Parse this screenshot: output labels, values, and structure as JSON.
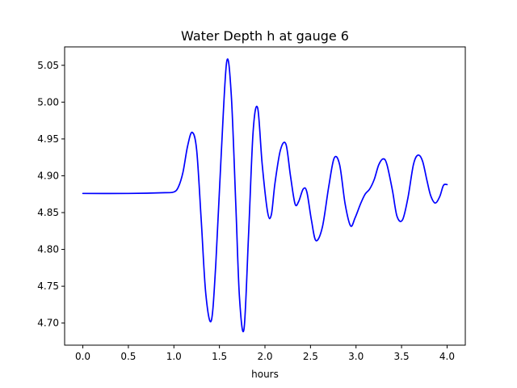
{
  "chart_data": {
    "type": "line",
    "title": "Water Depth h at gauge 6",
    "xlabel": "hours",
    "ylabel": "",
    "xlim": [
      -0.2,
      4.2
    ],
    "ylim": [
      4.67,
      5.075
    ],
    "xticks": [
      0.0,
      0.5,
      1.0,
      1.5,
      2.0,
      2.5,
      3.0,
      3.5,
      4.0
    ],
    "xtick_labels": [
      "0.0",
      "0.5",
      "1.0",
      "1.5",
      "2.0",
      "2.5",
      "3.0",
      "3.5",
      "4.0"
    ],
    "yticks": [
      4.7,
      4.75,
      4.8,
      4.85,
      4.9,
      4.95,
      5.0,
      5.05
    ],
    "ytick_labels": [
      "4.70",
      "4.75",
      "4.80",
      "4.85",
      "4.90",
      "4.95",
      "5.00",
      "5.05"
    ],
    "grid": false,
    "series": [
      {
        "color": "#0000ff",
        "x": [
          0.0,
          0.5,
          0.9,
          1.0,
          1.05,
          1.1,
          1.15,
          1.2,
          1.25,
          1.3,
          1.35,
          1.41,
          1.46,
          1.52,
          1.58,
          1.63,
          1.68,
          1.72,
          1.77,
          1.82,
          1.87,
          1.92,
          1.97,
          2.03,
          2.07,
          2.11,
          2.17,
          2.23,
          2.28,
          2.33,
          2.37,
          2.42,
          2.46,
          2.51,
          2.56,
          2.63,
          2.7,
          2.76,
          2.82,
          2.88,
          2.94,
          2.99,
          3.05,
          3.1,
          3.15,
          3.2,
          3.25,
          3.3,
          3.34,
          3.4,
          3.45,
          3.51,
          3.57,
          3.63,
          3.68,
          3.73,
          3.78,
          3.82,
          3.87,
          3.92,
          3.96,
          4.0
        ],
        "y": [
          4.876,
          4.876,
          4.877,
          4.878,
          4.885,
          4.905,
          4.94,
          4.959,
          4.935,
          4.84,
          4.74,
          4.703,
          4.78,
          4.93,
          5.055,
          5.01,
          4.86,
          4.735,
          4.692,
          4.82,
          4.96,
          4.992,
          4.915,
          4.85,
          4.847,
          4.89,
          4.935,
          4.943,
          4.9,
          4.862,
          4.865,
          4.882,
          4.878,
          4.84,
          4.812,
          4.83,
          4.885,
          4.924,
          4.915,
          4.862,
          4.832,
          4.843,
          4.862,
          4.875,
          4.882,
          4.895,
          4.915,
          4.923,
          4.915,
          4.88,
          4.845,
          4.84,
          4.87,
          4.915,
          4.928,
          4.92,
          4.893,
          4.873,
          4.863,
          4.872,
          4.887,
          4.888
        ]
      }
    ]
  }
}
